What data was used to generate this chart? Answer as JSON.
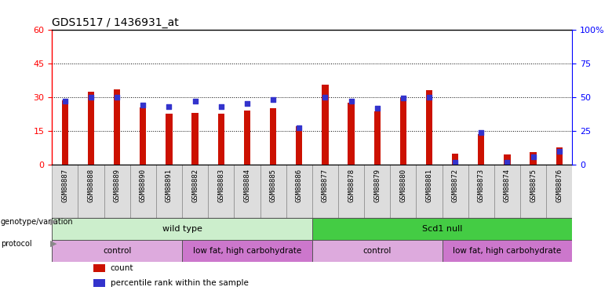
{
  "title": "GDS1517 / 1436931_at",
  "samples": [
    "GSM88887",
    "GSM88888",
    "GSM88889",
    "GSM88890",
    "GSM88891",
    "GSM88882",
    "GSM88883",
    "GSM88884",
    "GSM88885",
    "GSM88886",
    "GSM88877",
    "GSM88878",
    "GSM88879",
    "GSM88880",
    "GSM88881",
    "GSM88872",
    "GSM88873",
    "GSM88874",
    "GSM88875",
    "GSM88876"
  ],
  "count_values": [
    28.5,
    32.5,
    33.5,
    25.5,
    22.5,
    23.0,
    22.5,
    24.0,
    25.0,
    17.0,
    35.5,
    27.5,
    23.5,
    29.5,
    33.0,
    5.0,
    13.5,
    4.5,
    5.5,
    7.5
  ],
  "percentile_values": [
    47,
    50,
    50,
    44,
    43,
    47,
    43,
    45,
    48,
    27,
    50,
    47,
    42,
    49,
    50,
    2,
    24,
    2,
    6,
    10
  ],
  "ylim_left": [
    0,
    60
  ],
  "ylim_right": [
    0,
    100
  ],
  "yticks_left": [
    0,
    15,
    30,
    45,
    60
  ],
  "ytick_labels_left": [
    "0",
    "15",
    "30",
    "45",
    "60"
  ],
  "yticks_right": [
    0,
    25,
    50,
    75,
    100
  ],
  "ytick_labels_right": [
    "0",
    "25",
    "50",
    "75",
    "100%"
  ],
  "bar_color": "#cc1100",
  "dot_color": "#3333cc",
  "genotype_groups": [
    {
      "label": "wild type",
      "start": 0,
      "end": 10,
      "color": "#cceecc"
    },
    {
      "label": "Scd1 null",
      "start": 10,
      "end": 20,
      "color": "#44cc44"
    }
  ],
  "protocol_groups": [
    {
      "label": "control",
      "start": 0,
      "end": 5,
      "color": "#ddaadd"
    },
    {
      "label": "low fat, high carbohydrate",
      "start": 5,
      "end": 10,
      "color": "#cc77cc"
    },
    {
      "label": "control",
      "start": 10,
      "end": 15,
      "color": "#ddaadd"
    },
    {
      "label": "low fat, high carbohydrate",
      "start": 15,
      "end": 20,
      "color": "#cc77cc"
    }
  ],
  "legend_items": [
    {
      "label": "count",
      "color": "#cc1100"
    },
    {
      "label": "percentile rank within the sample",
      "color": "#3333cc"
    }
  ],
  "label_geno": "genotype/variation",
  "label_proto": "protocol"
}
